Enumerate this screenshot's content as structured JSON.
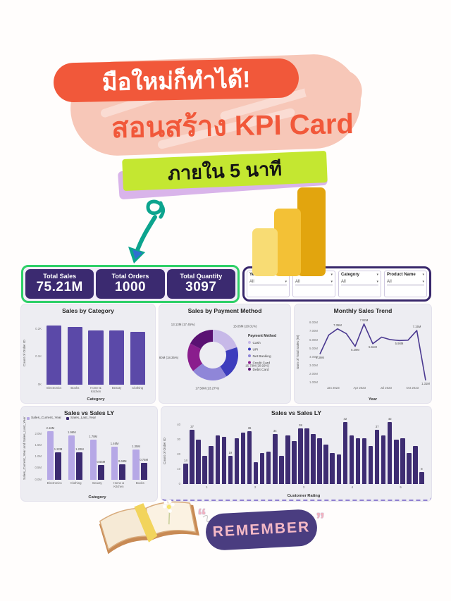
{
  "hero": {
    "badge_beginner": "มือใหม่ก็ทำได้!",
    "title": "สอนสร้าง KPI Card",
    "badge_time": "ภายใน 5 นาที"
  },
  "icons": {
    "chevron_down": "▾",
    "arrow": "curly-down-arrow",
    "logo": "power-bi-bars"
  },
  "colors": {
    "accent_orange": "#f1583a",
    "blob_pink": "#f7c7b8",
    "accent_lime": "#c4e731",
    "accent_lavender": "#d9b4ea",
    "arrow_teal": "#0ca48e",
    "kpi_green_border": "#2fd068",
    "purple_dark": "#3b2a70",
    "bar_purple": "#5b49a8",
    "panel_gray": "#ededf2",
    "pbi_yellow": "#f3c136",
    "remember_purple": "#4a3d80",
    "remember_pink": "#f5b9c6"
  },
  "kpi": {
    "cards": [
      {
        "label": "Total Sales",
        "value": "75.21M"
      },
      {
        "label": "Total Orders",
        "value": "1000"
      },
      {
        "label": "Total Quantity",
        "value": "3097"
      }
    ]
  },
  "filters": [
    {
      "label": "Year",
      "value": "All"
    },
    {
      "label": "",
      "value": "All"
    },
    {
      "label": "Category",
      "value": "All"
    },
    {
      "label": "Product Name",
      "value": "All"
    }
  ],
  "footer": {
    "remember": "REMEMBER",
    "quote_open": "“",
    "quote_close": "”"
  },
  "chart_data": [
    {
      "id": "sales_by_category",
      "type": "bar",
      "title": "Sales by Category",
      "xlabel": "Category",
      "ylabel": "Count of Order ID",
      "categories": [
        "Electronics",
        "Books",
        "Home &\nKitchen",
        "Beauty",
        "Clothing"
      ],
      "values": [
        215,
        210,
        197,
        196,
        192
      ],
      "color": "#5b49a8",
      "yticks": [
        [
          "0K",
          0
        ],
        [
          "0.1K",
          100
        ],
        [
          "0.2K",
          200
        ]
      ],
      "ylim": [
        0,
        230
      ],
      "grid": false,
      "legend": "none"
    },
    {
      "id": "sales_by_payment_method",
      "type": "pie",
      "title": "Sales by Payment Method",
      "legend_title": "Payment Method",
      "legend_position": "right",
      "slices": [
        {
          "label": "Cash",
          "value_label": "15.05M (20.01%)",
          "pct": 20.01,
          "color": "#c7b9e8"
        },
        {
          "label": "UPI",
          "value_label": "15.73M (20.92%)",
          "pct": 20.92,
          "color": "#3d3dbd"
        },
        {
          "label": "Net Banking",
          "value_label": "17.50M (23.27%)",
          "pct": 23.27,
          "color": "#8f86d8"
        },
        {
          "label": "Credit Card",
          "value_label": "13.80M (18.35%)",
          "pct": 18.35,
          "color": "#8a1d8d"
        },
        {
          "label": "Debit Card",
          "value_label": "13.13M (17.45%)",
          "pct": 17.45,
          "color": "#5a1173"
        }
      ]
    },
    {
      "id": "monthly_sales_trend",
      "type": "line",
      "title": "Monthly Sales Trend",
      "xlabel": "Year",
      "ylabel": "Sum of Total Sales (M)",
      "values": [
        4.39,
        6.62,
        7.35,
        6.78,
        5.29,
        7.92,
        5.61,
        6.38,
        6.08,
        5.98,
        6.02,
        7.15,
        1.31
      ],
      "point_labels": {
        "0": "4.39M",
        "2": "7.35M",
        "4": "5.29M",
        "5": "7.92M",
        "6": "5.61M",
        "9": "5.98M",
        "11": "7.15M",
        "12": "1.31M"
      },
      "color": "#4a3890",
      "xticks": [
        "Jan 2023",
        "Apr 2023",
        "Jul 2023",
        "Oct 2023"
      ],
      "yticks": [
        [
          "1.00M",
          1
        ],
        [
          "2.00M",
          2
        ],
        [
          "3.00M",
          3
        ],
        [
          "4.00M",
          4
        ],
        [
          "5.00M",
          5
        ],
        [
          "6.00M",
          6
        ],
        [
          "7.00M",
          7
        ],
        [
          "8.00M",
          8
        ]
      ],
      "ylim": [
        0.8,
        8.4
      ],
      "grid": false,
      "legend": "none"
    },
    {
      "id": "sales_vs_sales_ly_category",
      "type": "bar-grouped",
      "title": "Sales vs Sales LY",
      "xlabel": "Category",
      "ylabel": "Sales_Current_Year and Sales_Last_Year",
      "categories": [
        "Electronics",
        "Clothing",
        "Beauty",
        "Home &\nKitchen",
        "Books"
      ],
      "series": [
        {
          "name": "Sales_Current_Year",
          "color": "#b6a8e6",
          "values": [
            2.16,
            1.96,
            1.78,
            1.46,
            1.35
          ],
          "labels": [
            "2.16M",
            "1.96M",
            "1.78M",
            "1.46M",
            "1.35M"
          ]
        },
        {
          "name": "Sales_Last_Year",
          "color": "#3b2a70",
          "values": [
            1.22,
            1.2,
            0.65,
            0.68,
            0.75
          ],
          "labels": [
            "1.22M",
            "1.20M",
            "0.65M",
            "0.68M",
            "0.75M"
          ]
        }
      ],
      "yticks": [
        [
          "0.0M",
          0
        ],
        [
          "0.5M",
          0.5
        ],
        [
          "1.0M",
          1
        ],
        [
          "1.5M",
          1.5
        ],
        [
          "2.0M",
          2
        ]
      ],
      "ylim": [
        0,
        2.3
      ],
      "grid": false,
      "legend": "top-left"
    },
    {
      "id": "sales_vs_sales_ly_rating",
      "type": "bar",
      "title": "Sales vs Sales LY",
      "xlabel": "Customer Rating",
      "ylabel": "Count of Order ID",
      "values": [
        14,
        37,
        30,
        19,
        26,
        33,
        32,
        19,
        31,
        35,
        36,
        15,
        21,
        22,
        34,
        19,
        33,
        29,
        38,
        38,
        34,
        31,
        27,
        21,
        20,
        42,
        33,
        31,
        31,
        26,
        37,
        33,
        42,
        30,
        31,
        21,
        26,
        8
      ],
      "point_labels": {
        "0": "14",
        "1": "37",
        "7": "19",
        "10": "36",
        "14": "34",
        "18": "38",
        "25": "42",
        "30": "37",
        "32": "42",
        "37": "8"
      },
      "color": "#3e2d72",
      "xticks": [
        "1",
        "2",
        "3",
        "4",
        "5"
      ],
      "yticks": [
        [
          "0",
          0
        ],
        [
          "10",
          10
        ],
        [
          "20",
          20
        ],
        [
          "30",
          30
        ],
        [
          "40",
          40
        ]
      ],
      "ylim": [
        0,
        45
      ],
      "grid": false,
      "legend": "none"
    }
  ]
}
